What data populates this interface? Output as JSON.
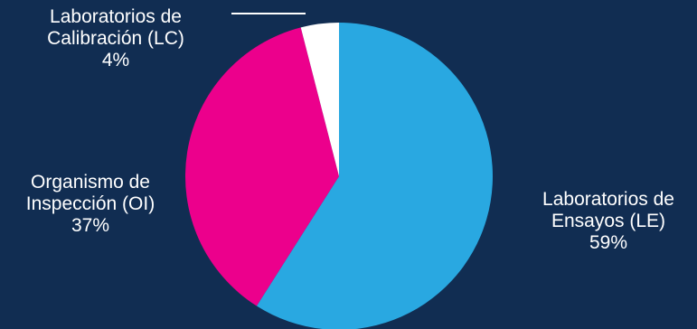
{
  "colors": {
    "background": "#112D52",
    "leader_line": "#FFFFFF"
  },
  "chart_data": {
    "type": "pie",
    "title": "",
    "start_angle_deg": 0,
    "direction": "clockwise",
    "legend": "none",
    "labels_shown": "outside",
    "slices": [
      {
        "label_lines": [
          "Laboratorios de",
          "Ensayos (LE)"
        ],
        "percent_label": "59%",
        "value": 59,
        "color": "#29A8E1"
      },
      {
        "label_lines": [
          "Organismo de",
          "Inspección (OI)"
        ],
        "percent_label": "37%",
        "value": 37,
        "color": "#EC008C"
      },
      {
        "label_lines": [
          "Laboratorios de",
          "Calibración (LC)"
        ],
        "percent_label": "4%",
        "value": 4,
        "color": "#FFFFFF"
      }
    ]
  }
}
